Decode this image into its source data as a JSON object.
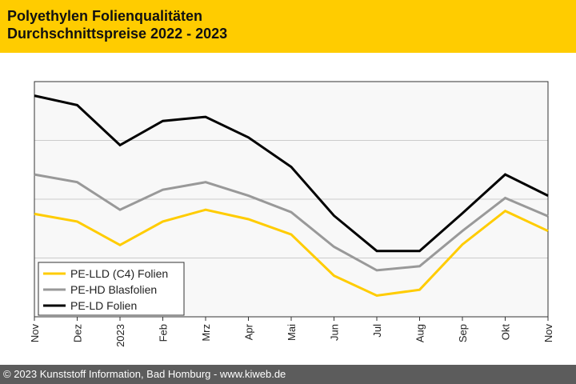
{
  "header": {
    "title_line1": "Polyethylen Folienqualitäten",
    "title_line2": "Durchschnittspreise 2022 - 2023"
  },
  "footer": {
    "copyright": "© 2023 Kunststoff Information, Bad Homburg - www.kiweb.de"
  },
  "colors": {
    "header_bg": "#ffcc00",
    "footer_bg": "#5c5c5c",
    "plot_bg": "#f8f8f8",
    "grid": "#cccccc"
  },
  "chart_data": {
    "type": "line",
    "title": "Polyethylen Folienqualitäten Durchschnittspreise 2022 - 2023",
    "xlabel": "",
    "ylabel": "",
    "categories": [
      "Nov",
      "Dez",
      "2023",
      "Feb",
      "Mrz",
      "Apr",
      "Mai",
      "Jun",
      "Jul",
      "Aug",
      "Sep",
      "Okt",
      "Nov"
    ],
    "ylim": [
      0,
      4
    ],
    "grid": true,
    "legend_position": "bottom-left",
    "series": [
      {
        "name": "PE-LLD (C4) Folien",
        "color": "#ffcc00",
        "values": [
          1.75,
          1.62,
          1.22,
          1.62,
          1.82,
          1.66,
          1.4,
          0.7,
          0.36,
          0.46,
          1.23,
          1.8,
          1.46
        ]
      },
      {
        "name": "PE-HD Blasfolien",
        "color": "#999999",
        "values": [
          2.42,
          2.29,
          1.82,
          2.16,
          2.29,
          2.06,
          1.78,
          1.19,
          0.79,
          0.86,
          1.46,
          2.02,
          1.71
        ]
      },
      {
        "name": "PE-LD Folien",
        "color": "#000000",
        "values": [
          3.76,
          3.6,
          2.92,
          3.33,
          3.4,
          3.05,
          2.55,
          1.72,
          1.12,
          1.12,
          1.76,
          2.42,
          2.06
        ]
      }
    ]
  }
}
